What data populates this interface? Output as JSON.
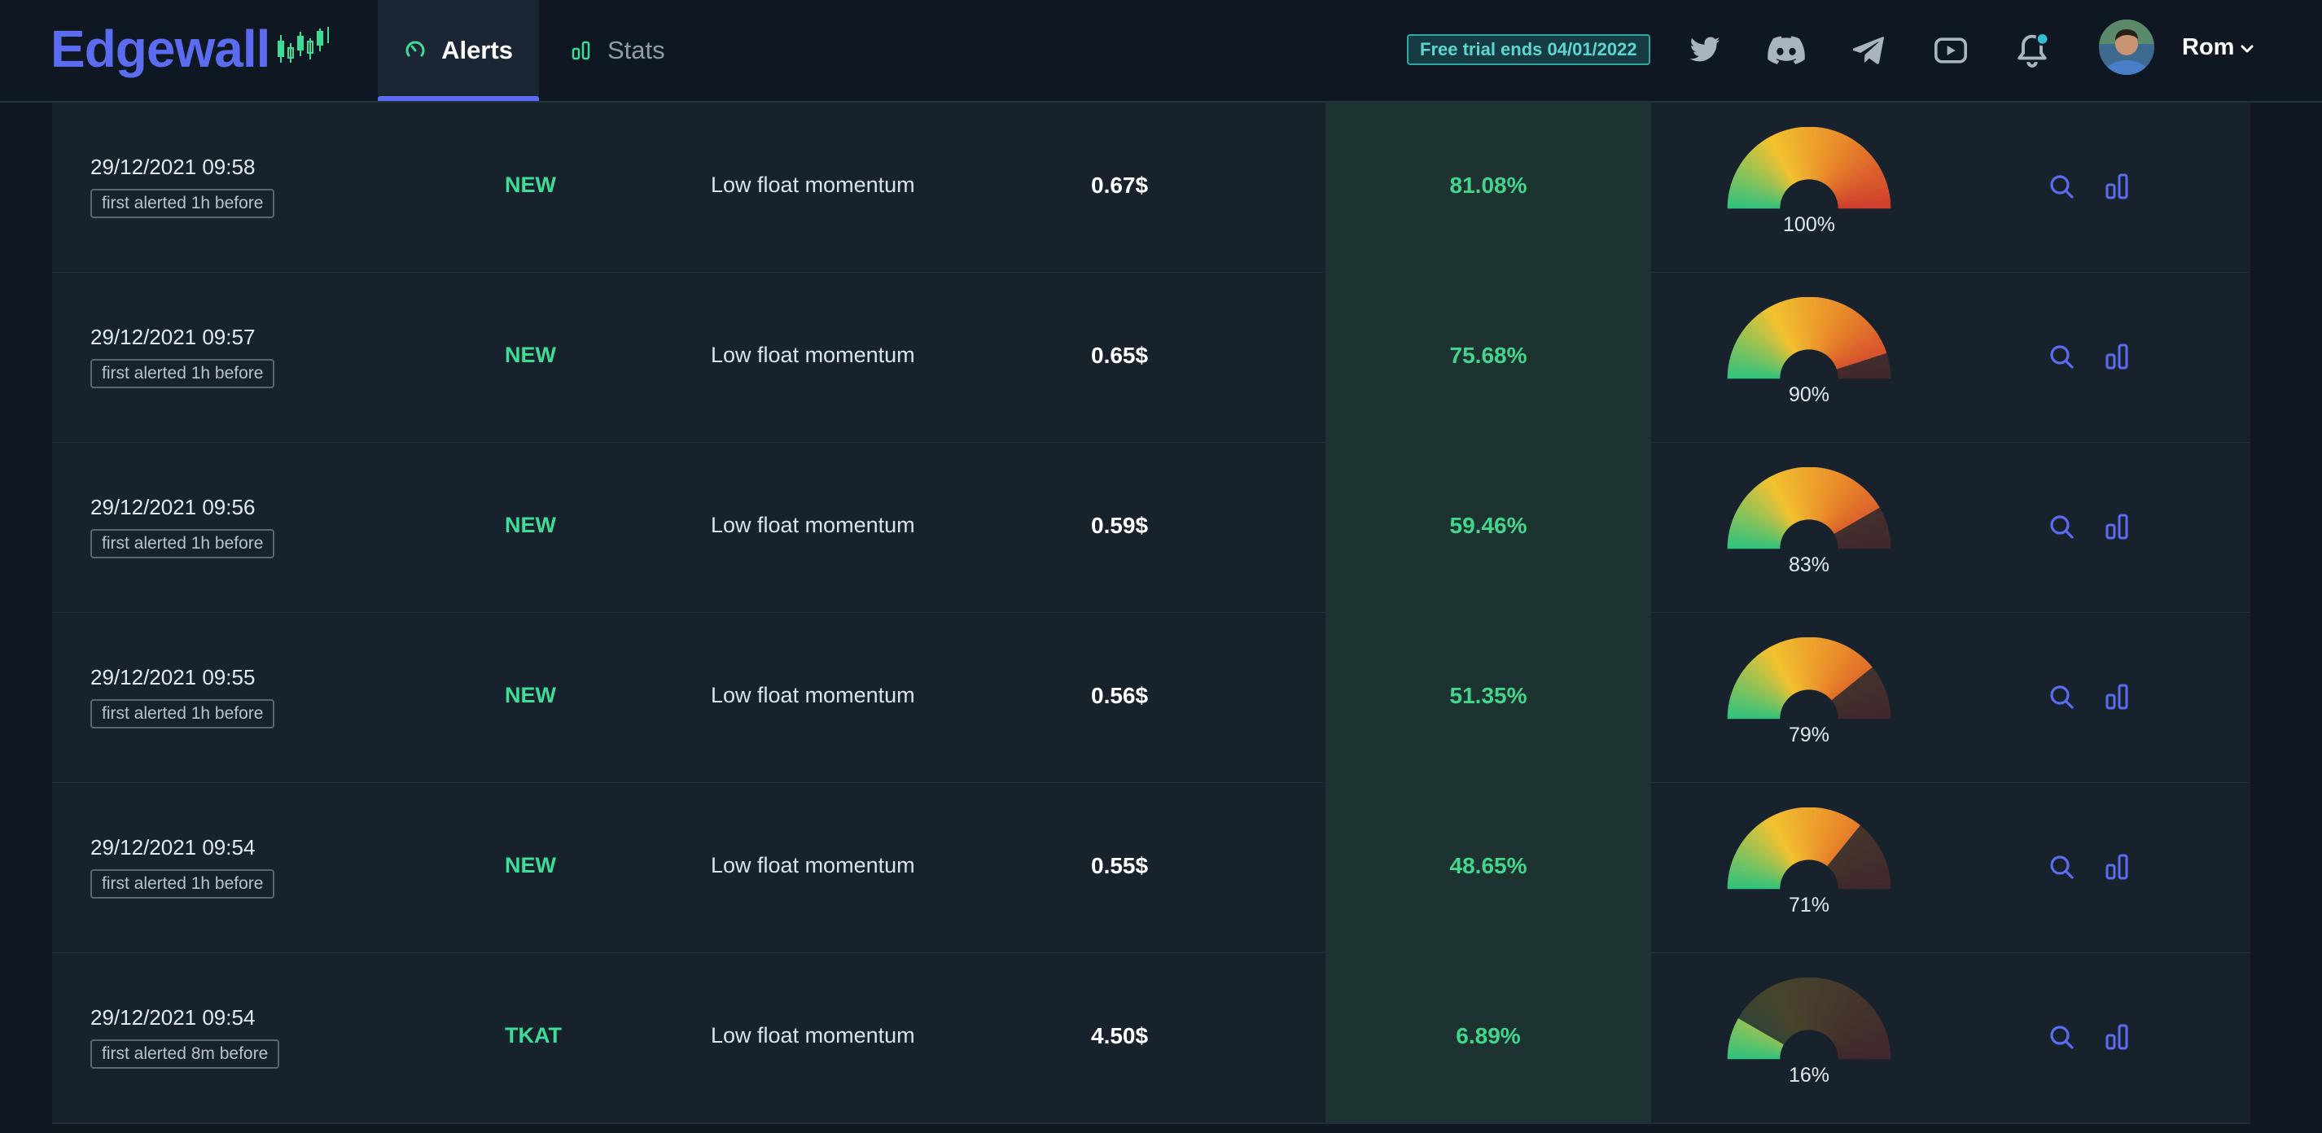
{
  "app": {
    "logo_text": "Edgewall"
  },
  "nav": {
    "tabs": [
      {
        "label": "Alerts",
        "icon": "gauge-icon",
        "active": true
      },
      {
        "label": "Stats",
        "icon": "bar-chart-icon",
        "active": false
      }
    ]
  },
  "header": {
    "trial_badge": "Free trial ends 04/01/2022",
    "social": [
      "twitter-icon",
      "discord-icon",
      "telegram-icon",
      "youtube-icon"
    ],
    "notifications": {
      "icon": "bell-icon",
      "has_unread": true
    },
    "user": {
      "name": "Rom"
    }
  },
  "colors": {
    "accent": "#5c6cf0",
    "symbol_green": "#3ddc97",
    "pct_green": "#43d68a",
    "badge_teal": "#5ed6d0",
    "gauge_green": "#2ec27e",
    "gauge_yellow": "#f2c230",
    "gauge_orange": "#e8862a",
    "gauge_red": "#cf3d2e"
  },
  "alerts": [
    {
      "time": "29/12/2021 09:58",
      "badge": "first alerted 1h before",
      "symbol": "NEW",
      "strategy": "Low float momentum",
      "price": "0.67$",
      "change": "81.08%",
      "score": 100,
      "score_label": "100%"
    },
    {
      "time": "29/12/2021 09:57",
      "badge": "first alerted 1h before",
      "symbol": "NEW",
      "strategy": "Low float momentum",
      "price": "0.65$",
      "change": "75.68%",
      "score": 90,
      "score_label": "90%"
    },
    {
      "time": "29/12/2021 09:56",
      "badge": "first alerted 1h before",
      "symbol": "NEW",
      "strategy": "Low float momentum",
      "price": "0.59$",
      "change": "59.46%",
      "score": 83,
      "score_label": "83%"
    },
    {
      "time": "29/12/2021 09:55",
      "badge": "first alerted 1h before",
      "symbol": "NEW",
      "strategy": "Low float momentum",
      "price": "0.56$",
      "change": "51.35%",
      "score": 79,
      "score_label": "79%"
    },
    {
      "time": "29/12/2021 09:54",
      "badge": "first alerted 1h before",
      "symbol": "NEW",
      "strategy": "Low float momentum",
      "price": "0.55$",
      "change": "48.65%",
      "score": 71,
      "score_label": "71%"
    },
    {
      "time": "29/12/2021 09:54",
      "badge": "first alerted 8m before",
      "symbol": "TKAT",
      "strategy": "Low float momentum",
      "price": "4.50$",
      "change": "6.89%",
      "score": 16,
      "score_label": "16%"
    }
  ]
}
